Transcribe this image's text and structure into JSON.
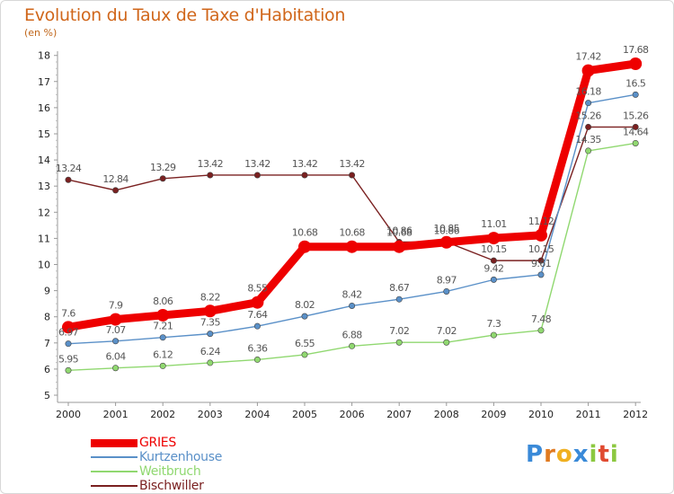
{
  "header": {
    "title": "Evolution du Taux de Taxe d'Habitation",
    "subtitle": "(en %)"
  },
  "logo": {
    "text": "Proxiti",
    "letters": [
      {
        "ch": "P",
        "color": "#3a8ad8"
      },
      {
        "ch": "r",
        "color": "#e07a20"
      },
      {
        "ch": "o",
        "color": "#f0b020"
      },
      {
        "ch": "x",
        "color": "#3a8ad8"
      },
      {
        "ch": "i",
        "color": "#8cc840"
      },
      {
        "ch": "t",
        "color": "#e04a30"
      },
      {
        "ch": "i",
        "color": "#8cc840"
      }
    ]
  },
  "chart_data": {
    "type": "line",
    "title": "Evolution du Taux de Taxe d'Habitation",
    "ylabel": "(en %)",
    "xlabel": "",
    "ylim": [
      5,
      18
    ],
    "y_ticks": [
      5,
      6,
      7,
      8,
      9,
      10,
      11,
      12,
      13,
      14,
      15,
      16,
      17,
      18
    ],
    "grid": false,
    "legend_position": "bottom-left",
    "x": [
      "2000",
      "2001",
      "2002",
      "2003",
      "2004",
      "2005",
      "2006",
      "2007",
      "2008",
      "2009",
      "2010",
      "2011",
      "2012"
    ],
    "series": [
      {
        "name": "Bischwiller",
        "color": "#7a2020",
        "values": [
          13.24,
          12.84,
          13.29,
          13.42,
          13.42,
          13.42,
          13.42,
          10.86,
          10.86,
          10.15,
          10.15,
          15.26,
          15.26
        ],
        "labels": [
          "13.24",
          "12.84",
          "13.29",
          "13.42",
          "13.42",
          "13.42",
          "13.42",
          "10.86",
          "10.86",
          "10.15",
          "10.15",
          "15.26",
          "15.26"
        ]
      },
      {
        "name": "Weitbruch",
        "color": "#90d870",
        "values": [
          5.95,
          6.04,
          6.12,
          6.24,
          6.36,
          6.55,
          6.88,
          7.02,
          7.02,
          7.3,
          7.48,
          14.35,
          14.64
        ],
        "labels": [
          "5.95",
          "6.04",
          "6.12",
          "6.24",
          "6.36",
          "6.55",
          "6.88",
          "7.02",
          "7.02",
          "7.3",
          "7.48",
          "14.35",
          "14.64"
        ]
      },
      {
        "name": "Kurtzenhouse",
        "color": "#5a90c8",
        "values": [
          6.97,
          7.07,
          7.21,
          7.35,
          7.64,
          8.02,
          8.42,
          8.67,
          8.97,
          9.42,
          9.61,
          16.18,
          16.5
        ],
        "labels": [
          "6.97",
          "7.07",
          "7.21",
          "7.35",
          "7.64",
          "8.02",
          "8.42",
          "8.67",
          "8.97",
          "9.42",
          "9.61",
          "16.18",
          "16.5"
        ]
      },
      {
        "name": "GRIES",
        "color": "#ee0000",
        "values": [
          7.6,
          7.9,
          8.06,
          8.22,
          8.55,
          10.68,
          10.68,
          10.68,
          10.85,
          11.01,
          11.12,
          17.42,
          17.68
        ],
        "labels": [
          "7.6",
          "7.9",
          "8.06",
          "8.22",
          "8.55",
          "10.68",
          "10.68",
          "10.68",
          "10.85",
          "11.01",
          "11.12",
          "17.42",
          "17.68"
        ]
      }
    ],
    "legend": [
      {
        "name": "GRIES",
        "color": "#ee0000"
      },
      {
        "name": "Kurtzenhouse",
        "color": "#5a90c8"
      },
      {
        "name": "Weitbruch",
        "color": "#90d870"
      },
      {
        "name": "Bischwiller",
        "color": "#7a2020"
      }
    ]
  }
}
